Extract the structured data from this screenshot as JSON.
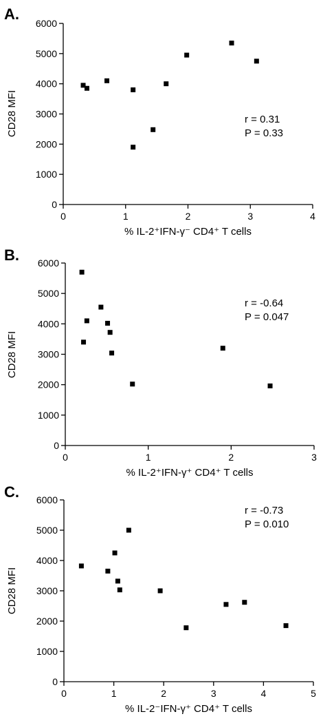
{
  "chart_data": [
    {
      "type": "scatter",
      "panel_label": "A.",
      "xlabel": "% IL-2⁺IFN-γ⁻ CD4⁺ T cells",
      "ylabel": "CD28 MFI",
      "xlim": [
        0,
        4
      ],
      "ylim": [
        0,
        6000
      ],
      "xticks": [
        0,
        1,
        2,
        3,
        4
      ],
      "yticks": [
        0,
        1000,
        2000,
        3000,
        4000,
        5000,
        6000
      ],
      "grid": false,
      "points": [
        {
          "x": 0.32,
          "y": 3950
        },
        {
          "x": 0.38,
          "y": 3850
        },
        {
          "x": 0.7,
          "y": 4100
        },
        {
          "x": 1.12,
          "y": 3800
        },
        {
          "x": 1.12,
          "y": 1900
        },
        {
          "x": 1.44,
          "y": 2480
        },
        {
          "x": 1.65,
          "y": 4000
        },
        {
          "x": 1.98,
          "y": 4950
        },
        {
          "x": 2.7,
          "y": 5350
        },
        {
          "x": 3.1,
          "y": 4750
        }
      ],
      "stats": {
        "r": "r =  0.31",
        "p": "P = 0.33"
      }
    },
    {
      "type": "scatter",
      "panel_label": "B.",
      "xlabel": "% IL-2⁺IFN-γ⁺ CD4⁺ T cells",
      "ylabel": "CD28 MFI",
      "xlim": [
        0,
        3
      ],
      "ylim": [
        0,
        6000
      ],
      "xticks": [
        0,
        1,
        2,
        3
      ],
      "yticks": [
        0,
        1000,
        2000,
        3000,
        4000,
        5000,
        6000
      ],
      "grid": false,
      "points": [
        {
          "x": 0.2,
          "y": 5700
        },
        {
          "x": 0.22,
          "y": 3400
        },
        {
          "x": 0.26,
          "y": 4100
        },
        {
          "x": 0.43,
          "y": 4550
        },
        {
          "x": 0.51,
          "y": 4020
        },
        {
          "x": 0.54,
          "y": 3720
        },
        {
          "x": 0.56,
          "y": 3040
        },
        {
          "x": 0.81,
          "y": 2020
        },
        {
          "x": 1.9,
          "y": 3200
        },
        {
          "x": 2.47,
          "y": 1960
        }
      ],
      "stats": {
        "r": "r =  -0.64",
        "p": "P = 0.047"
      }
    },
    {
      "type": "scatter",
      "panel_label": "C.",
      "xlabel": "% IL-2⁻IFN-γ⁺ CD4⁺ T cells",
      "ylabel": "CD28 MFI",
      "xlim": [
        0,
        5
      ],
      "ylim": [
        0,
        6000
      ],
      "xticks": [
        0,
        1,
        2,
        3,
        4,
        5
      ],
      "yticks": [
        0,
        1000,
        2000,
        3000,
        4000,
        5000,
        6000
      ],
      "grid": false,
      "points": [
        {
          "x": 0.35,
          "y": 3820
        },
        {
          "x": 0.88,
          "y": 3650
        },
        {
          "x": 1.02,
          "y": 4250
        },
        {
          "x": 1.08,
          "y": 3320
        },
        {
          "x": 1.12,
          "y": 3030
        },
        {
          "x": 1.3,
          "y": 5000
        },
        {
          "x": 1.93,
          "y": 3000
        },
        {
          "x": 2.45,
          "y": 1780
        },
        {
          "x": 3.25,
          "y": 2550
        },
        {
          "x": 3.62,
          "y": 2620
        },
        {
          "x": 4.45,
          "y": 1850
        }
      ],
      "stats": {
        "r": "r =  -0.73",
        "p": "P = 0.010"
      }
    }
  ]
}
